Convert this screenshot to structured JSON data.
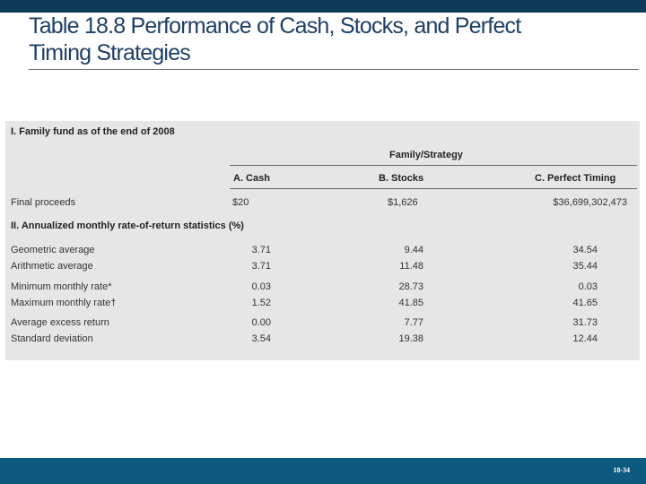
{
  "slide": {
    "title_line1": "Table 18.8 Performance of Cash, Stocks, and Perfect",
    "title_line2": "Timing Strategies",
    "page_number": "18-34"
  },
  "table": {
    "section1_heading": "I. Family fund as of the end of 2008",
    "group_header": "Family/Strategy",
    "columns": [
      "A. Cash",
      "B. Stocks",
      "C. Perfect Timing"
    ],
    "section1_rows": [
      {
        "label": "Final proceeds",
        "values": [
          "$20",
          "$1,626",
          "$36,699,302,473"
        ]
      }
    ],
    "section2_heading": "II. Annualized monthly rate-of-return statistics (%)",
    "section2_rows": [
      {
        "label": "Geometric average",
        "values": [
          "3.71",
          "9.44",
          "34.54"
        ]
      },
      {
        "label": "Arithmetic average",
        "values": [
          "3.71",
          "11.48",
          "35.44"
        ]
      },
      {
        "label": "Minimum monthly rate*",
        "values": [
          "0.03",
          "28.73",
          "0.03"
        ]
      },
      {
        "label": "Maximum monthly rate†",
        "values": [
          "1.52",
          "41.85",
          "41.65"
        ]
      },
      {
        "label": "Average excess return",
        "values": [
          "0.00",
          "7.77",
          "31.73"
        ]
      },
      {
        "label": "Standard deviation",
        "values": [
          "3.54",
          "19.38",
          "12.44"
        ]
      }
    ]
  }
}
